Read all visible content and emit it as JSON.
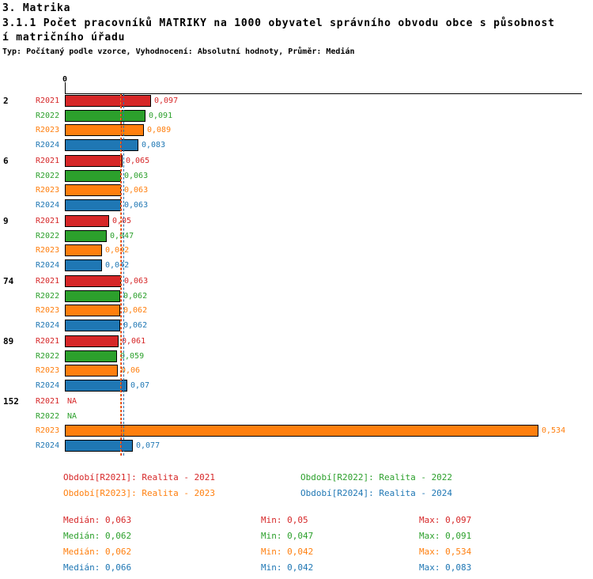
{
  "header": {
    "section_title": "3. Matrika",
    "title_line1": "3.1.1 Počet pracovníků MATRIKY na 1000 obyvatel správního obvodu obce s působnost",
    "title_line2": "í matričního úřadu",
    "subtitle": "Typ: Počítaný podle vzorce, Vyhodnocení: Absolutní hodnoty, Průměr: Medián"
  },
  "chart_data": {
    "type": "bar",
    "orientation": "horizontal",
    "title": "3.1.1 Počet pracovníků MATRIKY na 1000 obyvatel správního obvodu obce s působností matričního úřadu",
    "xlim": [
      0,
      0.583
    ],
    "x_tick_labels": [
      "0"
    ],
    "zero_tick_label": "0",
    "grid": false,
    "legend_position": "bottom",
    "stat_labels": {
      "median": "Medián",
      "min": "Min",
      "max": "Max"
    },
    "series": [
      {
        "key": "R2021",
        "color": "#d62728",
        "legend": "Období[R2021]: Realita - 2021",
        "median": 0.063,
        "median_display": "0,063",
        "min_display": "0,05",
        "max_display": "0,097"
      },
      {
        "key": "R2022",
        "color": "#2ca02c",
        "legend": "Období[R2022]: Realita - 2022",
        "median": 0.062,
        "median_display": "0,062",
        "min_display": "0,047",
        "max_display": "0,091"
      },
      {
        "key": "R2023",
        "color": "#ff7f0e",
        "legend": "Období[R2023]: Realita - 2023",
        "median": 0.062,
        "median_display": "0,062",
        "min_display": "0,042",
        "max_display": "0,534"
      },
      {
        "key": "R2024",
        "color": "#1f77b4",
        "legend": "Období[R2024]: Realita - 2024",
        "median": 0.066,
        "median_display": "0,066",
        "min_display": "0,042",
        "max_display": "0,083"
      }
    ],
    "groups": [
      {
        "id": "2",
        "values": [
          0.097,
          0.091,
          0.089,
          0.083
        ],
        "displays": [
          "0,097",
          "0,091",
          "0,089",
          "0,083"
        ]
      },
      {
        "id": "6",
        "values": [
          0.065,
          0.063,
          0.063,
          0.063
        ],
        "displays": [
          "0,065",
          "0,063",
          "0,063",
          "0,063"
        ]
      },
      {
        "id": "9",
        "values": [
          0.05,
          0.047,
          0.042,
          0.042
        ],
        "displays": [
          "0,05",
          "0,047",
          "0,042",
          "0,042"
        ]
      },
      {
        "id": "74",
        "values": [
          0.063,
          0.062,
          0.062,
          0.062
        ],
        "displays": [
          "0,063",
          "0,062",
          "0,062",
          "0,062"
        ]
      },
      {
        "id": "89",
        "values": [
          0.061,
          0.059,
          0.06,
          0.07
        ],
        "displays": [
          "0,061",
          "0,059",
          "0,06",
          "0,07"
        ]
      },
      {
        "id": "152",
        "values": [
          null,
          null,
          0.534,
          0.077
        ],
        "displays": [
          "NA",
          "NA",
          "0,534",
          "0,077"
        ]
      }
    ]
  }
}
